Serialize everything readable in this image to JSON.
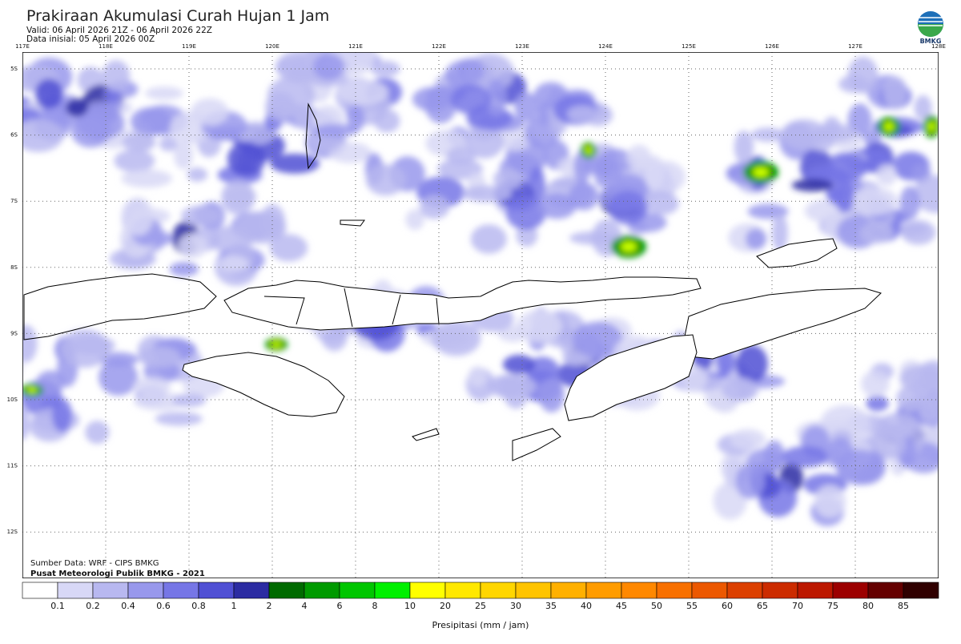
{
  "header": {
    "title": "Prakiraan Akumulasi Curah Hujan 1 Jam",
    "valid": "Valid: 06 April 2026 21Z - 06 April 2026 22Z",
    "initial": "Data inisial: 05 April 2026 00Z",
    "logo_text": "BMKG"
  },
  "map": {
    "lon_labels": [
      "117E",
      "118E",
      "119E",
      "120E",
      "121E",
      "122E",
      "123E",
      "124E",
      "125E",
      "126E",
      "127E",
      "128E"
    ],
    "lat_labels": [
      "5S",
      "6S",
      "7S",
      "8S",
      "9S",
      "10S",
      "11S",
      "12S"
    ],
    "source": "Sumber Data: WRF - CIPS BMKG",
    "credit": "Pusat Meteorologi Publik BMKG - 2021"
  },
  "colorbar": {
    "labels": [
      0.1,
      0.2,
      0.4,
      0.6,
      0.8,
      1,
      2,
      4,
      6,
      8,
      10,
      20,
      25,
      30,
      35,
      40,
      45,
      50,
      55,
      60,
      65,
      70,
      75,
      80,
      85
    ],
    "colors": [
      "#ffffff",
      "#d8d8f6",
      "#b8b8f0",
      "#9898ec",
      "#7676e6",
      "#5050d4",
      "#2c2ca2",
      "#006a00",
      "#009a00",
      "#00c600",
      "#00f000",
      "#ffff00",
      "#ffe800",
      "#ffd600",
      "#ffc400",
      "#ffb000",
      "#ff9c00",
      "#ff8800",
      "#f87000",
      "#ec5800",
      "#dc4000",
      "#cc2c00",
      "#bc1800",
      "#9c0000",
      "#640000",
      "#300000"
    ],
    "label": "Presipitasi (mm / jam)"
  }
}
